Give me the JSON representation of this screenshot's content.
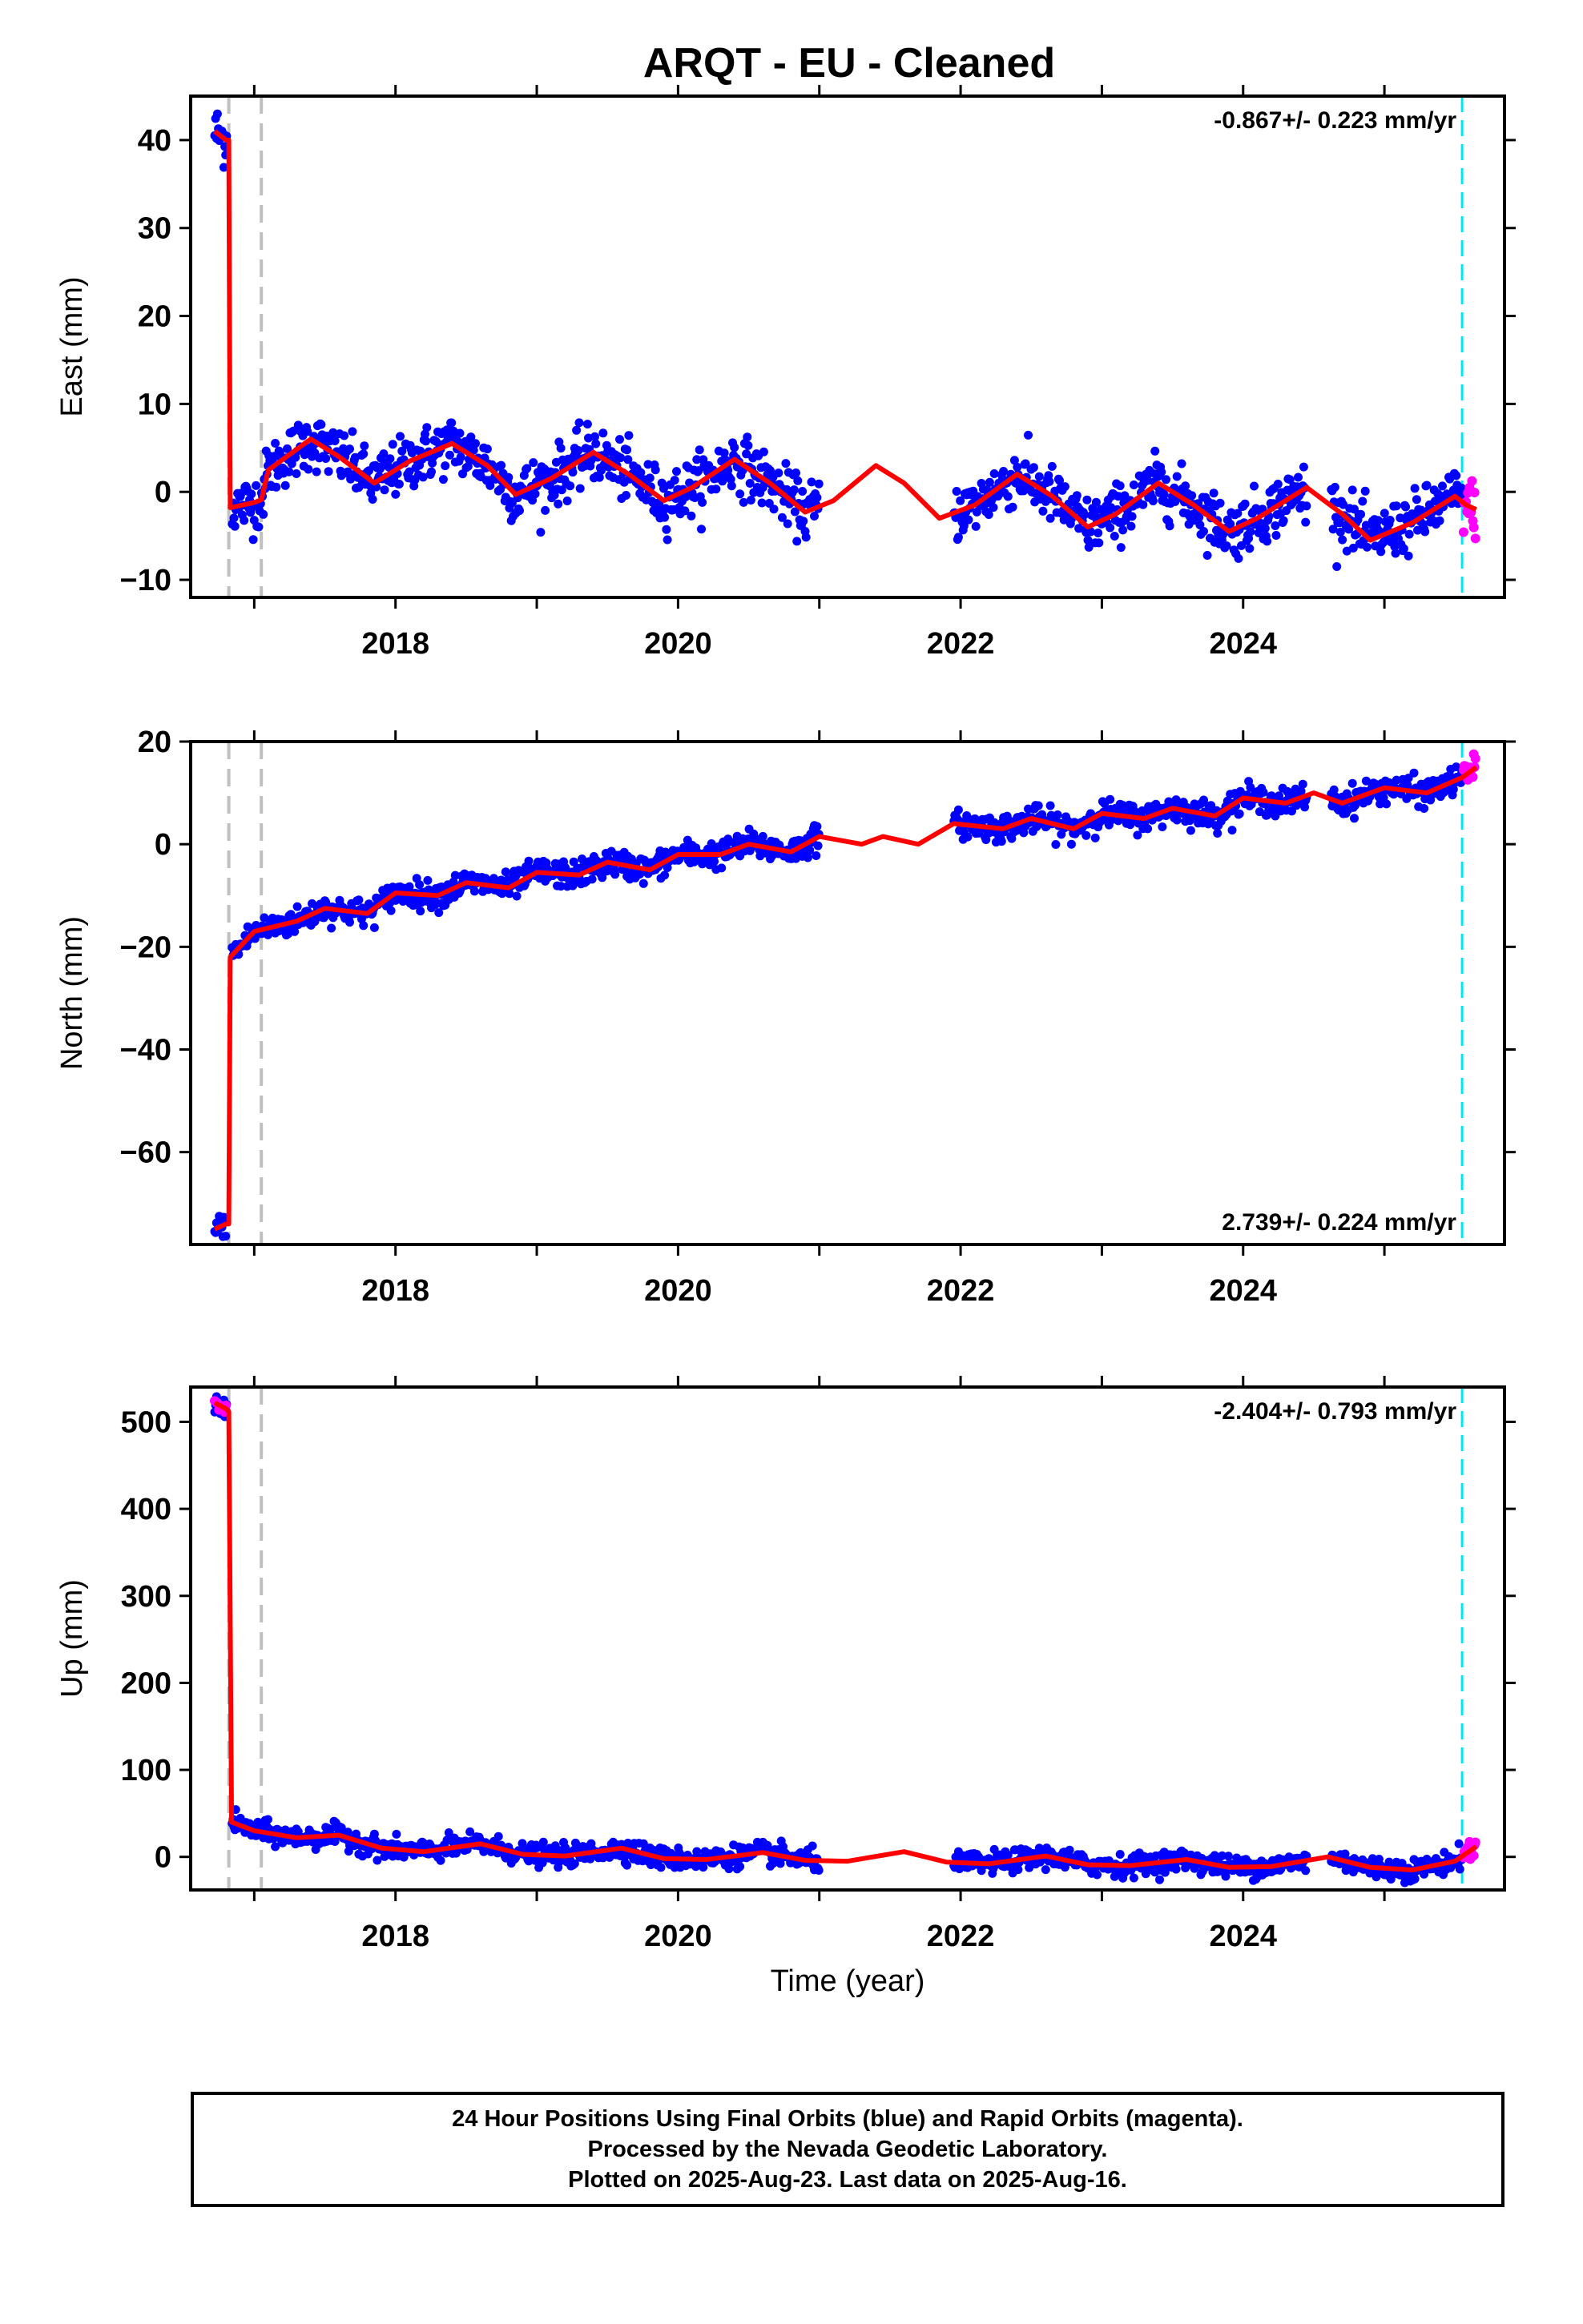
{
  "title": "ARQT  - EU - Cleaned",
  "xlabel": "Time (year)",
  "footer": {
    "line1": "24 Hour Positions Using Final Orbits (blue) and Rapid Orbits (magenta).",
    "line2": "Processed by the Nevada Geodetic Laboratory.",
    "line3": "Plotted on 2025-Aug-23. Last data on 2025-Aug-16."
  },
  "colors": {
    "final_orbits": "#0000ff",
    "rapid_orbits": "#ff00ff",
    "model": "#ff0000",
    "equipment_change": "#c0c0c0",
    "rapid_start": "#00e5ee"
  },
  "chart_data": [
    {
      "type": "scatter",
      "component": "east",
      "ylabel": "East (mm)",
      "rate_label": "-0.867+/- 0.223 mm/yr",
      "xlim": [
        2016.55,
        2025.85
      ],
      "ylim": [
        -12,
        45
      ],
      "xticks": [
        2018,
        2020,
        2022,
        2024
      ],
      "yticks": [
        -10,
        0,
        10,
        20,
        30,
        40
      ],
      "vlines_gray": [
        2016.82,
        2017.05
      ],
      "vline_cyan": 2025.55,
      "model_curve": [
        [
          2016.72,
          41.0
        ],
        [
          2016.8,
          40.0
        ],
        [
          2016.82,
          40.0
        ],
        [
          2016.83,
          -1.8
        ],
        [
          2017.0,
          -1.2
        ],
        [
          2017.05,
          -0.9
        ],
        [
          2017.1,
          2.5
        ],
        [
          2017.4,
          6.0
        ],
        [
          2017.6,
          4.0
        ],
        [
          2017.85,
          1.0
        ],
        [
          2018.1,
          3.5
        ],
        [
          2018.4,
          5.5
        ],
        [
          2018.65,
          3.0
        ],
        [
          2018.85,
          -0.3
        ],
        [
          2019.1,
          1.5
        ],
        [
          2019.4,
          4.5
        ],
        [
          2019.65,
          2.0
        ],
        [
          2019.9,
          -1.0
        ],
        [
          2020.1,
          0.5
        ],
        [
          2020.4,
          3.7
        ],
        [
          2020.65,
          1.0
        ],
        [
          2020.9,
          -2.3
        ],
        [
          2021.1,
          -1.0
        ],
        [
          2021.4,
          3.0
        ],
        [
          2021.6,
          1.0
        ],
        [
          2021.85,
          -3.0
        ],
        [
          2022.1,
          -1.5
        ],
        [
          2022.4,
          2.0
        ],
        [
          2022.65,
          -0.5
        ],
        [
          2022.9,
          -4.0
        ],
        [
          2023.1,
          -2.5
        ],
        [
          2023.4,
          1.0
        ],
        [
          2023.65,
          -1.5
        ],
        [
          2023.9,
          -4.5
        ],
        [
          2024.1,
          -3.0
        ],
        [
          2024.45,
          0.5
        ],
        [
          2024.7,
          -2.5
        ],
        [
          2024.9,
          -5.5
        ],
        [
          2025.2,
          -3.5
        ],
        [
          2025.5,
          -0.5
        ],
        [
          2025.58,
          -1.5
        ],
        [
          2025.65,
          -2.0
        ]
      ]
    },
    {
      "type": "scatter",
      "component": "north",
      "ylabel": "North (mm)",
      "rate_label": "2.739+/- 0.224 mm/yr",
      "xlim": [
        2016.55,
        2025.85
      ],
      "ylim": [
        -78,
        20
      ],
      "xticks": [
        2018,
        2020,
        2022,
        2024
      ],
      "yticks": [
        -60,
        -40,
        -20,
        0,
        20
      ],
      "vlines_gray": [
        2016.82,
        2017.05
      ],
      "vline_cyan": 2025.55,
      "model_curve": [
        [
          2016.72,
          -75.0
        ],
        [
          2016.8,
          -74.0
        ],
        [
          2016.82,
          -74.0
        ],
        [
          2016.83,
          -22.0
        ],
        [
          2017.0,
          -17.0
        ],
        [
          2017.3,
          -15.0
        ],
        [
          2017.5,
          -12.5
        ],
        [
          2017.8,
          -13.5
        ],
        [
          2018.0,
          -9.5
        ],
        [
          2018.3,
          -10.0
        ],
        [
          2018.5,
          -7.5
        ],
        [
          2018.8,
          -8.5
        ],
        [
          2019.0,
          -5.5
        ],
        [
          2019.3,
          -6.0
        ],
        [
          2019.5,
          -3.5
        ],
        [
          2019.8,
          -5.0
        ],
        [
          2020.0,
          -2.0
        ],
        [
          2020.3,
          -2.0
        ],
        [
          2020.5,
          0.0
        ],
        [
          2020.8,
          -1.5
        ],
        [
          2021.0,
          1.5
        ],
        [
          2021.3,
          0.0
        ],
        [
          2021.45,
          1.5
        ],
        [
          2021.7,
          0.0
        ],
        [
          2021.95,
          4.0
        ],
        [
          2022.3,
          3.0
        ],
        [
          2022.5,
          5.0
        ],
        [
          2022.8,
          3.0
        ],
        [
          2023.0,
          6.0
        ],
        [
          2023.3,
          5.0
        ],
        [
          2023.5,
          7.0
        ],
        [
          2023.8,
          5.5
        ],
        [
          2024.0,
          9.0
        ],
        [
          2024.3,
          8.0
        ],
        [
          2024.5,
          10.0
        ],
        [
          2024.7,
          8.0
        ],
        [
          2025.0,
          11.0
        ],
        [
          2025.3,
          10.0
        ],
        [
          2025.55,
          13.0
        ],
        [
          2025.65,
          15.0
        ]
      ]
    },
    {
      "type": "scatter",
      "component": "up",
      "ylabel": "Up (mm)",
      "rate_label": "-2.404+/- 0.793 mm/yr",
      "xlim": [
        2016.55,
        2025.85
      ],
      "ylim": [
        -38,
        540
      ],
      "xticks": [
        2018,
        2020,
        2022,
        2024
      ],
      "yticks": [
        0,
        100,
        200,
        300,
        400,
        500
      ],
      "vlines_gray": [
        2016.82,
        2017.05
      ],
      "vline_cyan": 2025.55,
      "model_curve": [
        [
          2016.72,
          522.0
        ],
        [
          2016.8,
          515.0
        ],
        [
          2016.82,
          512.0
        ],
        [
          2016.84,
          40.0
        ],
        [
          2017.0,
          30.0
        ],
        [
          2017.3,
          22.0
        ],
        [
          2017.6,
          25.0
        ],
        [
          2017.9,
          10.0
        ],
        [
          2018.2,
          6.0
        ],
        [
          2018.6,
          15.0
        ],
        [
          2018.9,
          3.0
        ],
        [
          2019.2,
          1.0
        ],
        [
          2019.6,
          10.0
        ],
        [
          2019.9,
          -2.0
        ],
        [
          2020.2,
          -3.0
        ],
        [
          2020.6,
          5.0
        ],
        [
          2020.9,
          -4.0
        ],
        [
          2021.2,
          -5.0
        ],
        [
          2021.6,
          6.0
        ],
        [
          2021.9,
          -6.0
        ],
        [
          2022.2,
          -8.0
        ],
        [
          2022.6,
          1.0
        ],
        [
          2022.9,
          -9.0
        ],
        [
          2023.2,
          -10.0
        ],
        [
          2023.6,
          -3.0
        ],
        [
          2023.9,
          -12.0
        ],
        [
          2024.2,
          -11.0
        ],
        [
          2024.6,
          0.0
        ],
        [
          2024.9,
          -12.0
        ],
        [
          2025.2,
          -15.0
        ],
        [
          2025.5,
          -5.0
        ],
        [
          2025.65,
          12.0
        ]
      ]
    }
  ]
}
